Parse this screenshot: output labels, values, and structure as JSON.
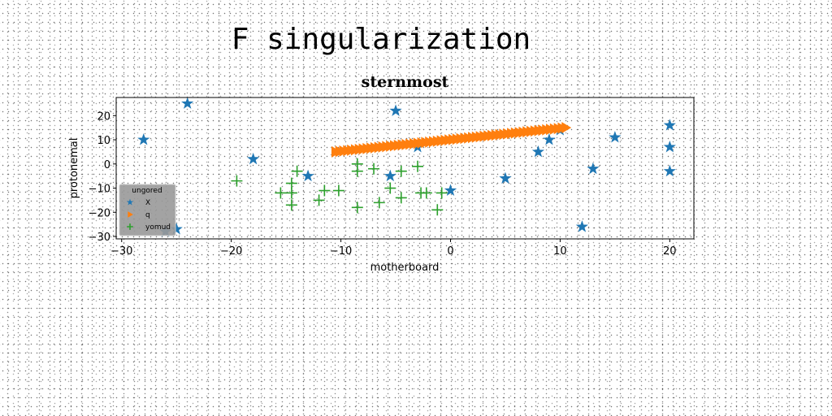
{
  "figure": {
    "suptitle": "F singularization"
  },
  "chart_data": {
    "type": "scatter",
    "title": "sternmost",
    "xlabel": "motherboard",
    "ylabel": "protonemal",
    "xlim": [
      -30.5,
      22.2
    ],
    "ylim": [
      -31,
      27.5
    ],
    "xticks": [
      -30,
      -20,
      -10,
      0,
      10,
      20
    ],
    "yticks": [
      -30,
      -20,
      -10,
      0,
      10,
      20
    ],
    "grid": false,
    "legend": {
      "title": "ungored",
      "placement": "lower-left"
    },
    "series": [
      {
        "name": "X",
        "marker": "star",
        "color": "#1f77b4",
        "points": [
          [
            -24,
            25
          ],
          [
            -28,
            10
          ],
          [
            -18,
            2
          ],
          [
            -13,
            -5
          ],
          [
            -5,
            22
          ],
          [
            -5.5,
            -5
          ],
          [
            -3,
            7
          ],
          [
            0,
            -11
          ],
          [
            5,
            -6
          ],
          [
            8,
            5
          ],
          [
            9,
            10
          ],
          [
            10,
            14
          ],
          [
            12,
            -26
          ],
          [
            13,
            -2
          ],
          [
            15,
            11
          ],
          [
            20,
            16
          ],
          [
            20,
            7
          ],
          [
            20,
            -3
          ],
          [
            -26,
            -28
          ],
          [
            -25,
            -27
          ]
        ]
      },
      {
        "name": "q",
        "marker": "triangle-right",
        "color": "#ff7f0e",
        "line": {
          "x_start": -10.5,
          "x_end": 10.5,
          "y_start": 5,
          "y_end": 15,
          "count": 60
        }
      },
      {
        "name": "yomud",
        "marker": "plus",
        "color": "#2ca02c",
        "points": [
          [
            -19.5,
            -7
          ],
          [
            -15.5,
            -12
          ],
          [
            -14.5,
            -8
          ],
          [
            -14.5,
            -12
          ],
          [
            -14.5,
            -17
          ],
          [
            -14,
            -3
          ],
          [
            -12,
            -15
          ],
          [
            -11.5,
            -11
          ],
          [
            -10.2,
            -11
          ],
          [
            -8.5,
            -18
          ],
          [
            -8.5,
            0
          ],
          [
            -8.5,
            -3
          ],
          [
            -7,
            -2
          ],
          [
            -6.5,
            -16
          ],
          [
            -5.5,
            -10
          ],
          [
            -4.5,
            -3
          ],
          [
            -4.5,
            -14
          ],
          [
            -3,
            -1
          ],
          [
            -2.7,
            -12
          ],
          [
            -2.2,
            -12
          ],
          [
            -1.2,
            -19
          ],
          [
            -0.8,
            -12
          ]
        ]
      }
    ]
  }
}
